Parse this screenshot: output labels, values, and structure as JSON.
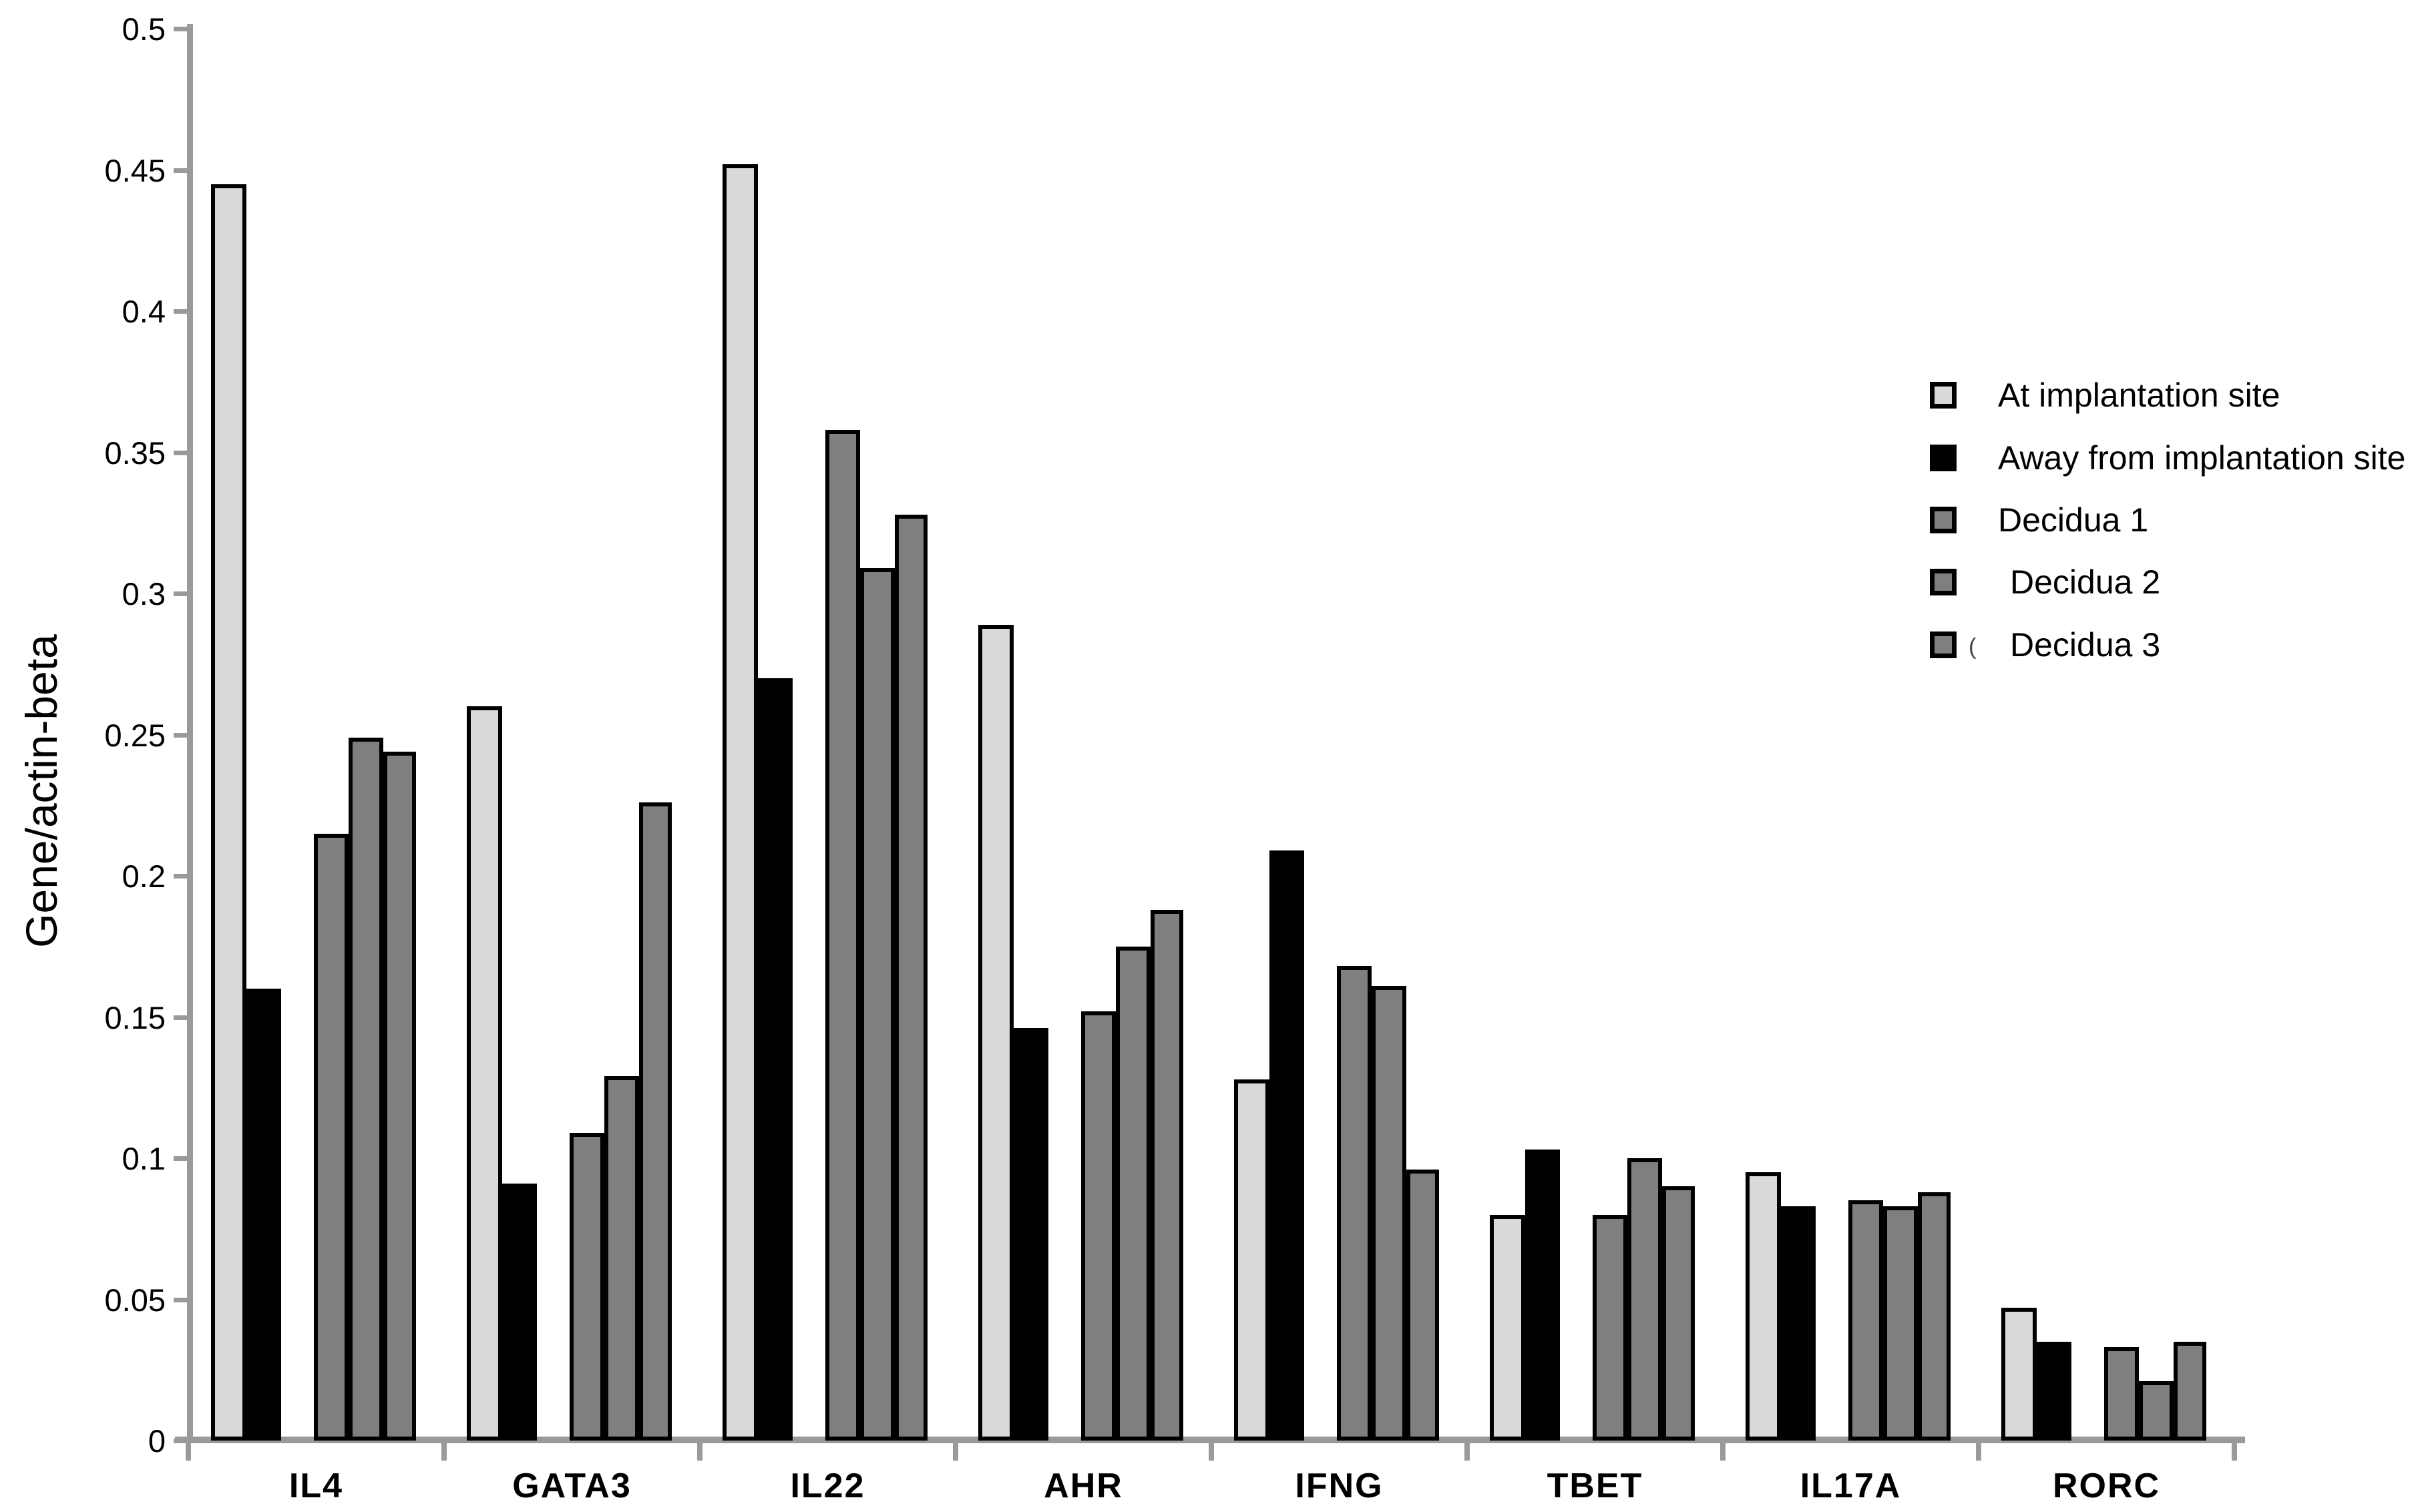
{
  "y_axis": {
    "title": "Gene/actin-beta",
    "tick_values": [
      0,
      0.05,
      0.1,
      0.15,
      0.2,
      0.25,
      0.3,
      0.35,
      0.4,
      0.45,
      0.5
    ],
    "tick_labels": [
      "0",
      "0.05",
      "0.1",
      "0.15",
      "0.2",
      "0.25",
      "0.3",
      "0.35",
      "0.4",
      "0.45",
      "0.5"
    ],
    "max": 0.5
  },
  "legend": {
    "items": [
      {
        "label": "At implantation site",
        "color": "#d9d9d9"
      },
      {
        "label": "Away from implantation site",
        "color": "#000000"
      },
      {
        "label": "Decidua 1",
        "color": "#7f7f7f"
      },
      {
        "label": "Decidua 2",
        "color": "#7f7f7f"
      },
      {
        "label": "Decidua 3",
        "color": "#7f7f7f"
      }
    ],
    "stray_mark": "("
  },
  "chart_data": {
    "type": "bar",
    "title": "",
    "xlabel": "",
    "ylabel": "Gene/actin-beta",
    "ylim": [
      0,
      0.5
    ],
    "grid": false,
    "legend_position": "upper-right",
    "categories": [
      "IL4",
      "GATA3",
      "IL22",
      "AHR",
      "IFNG",
      "TBET",
      "IL17A",
      "RORC"
    ],
    "series": [
      {
        "name": "At implantation site",
        "color": "#d9d9d9",
        "values": [
          0.445,
          0.26,
          0.452,
          0.289,
          0.128,
          0.08,
          0.095,
          0.047
        ]
      },
      {
        "name": "Away from implantation site",
        "color": "#000000",
        "values": [
          0.16,
          0.091,
          0.27,
          0.146,
          0.209,
          0.103,
          0.083,
          0.035
        ]
      },
      {
        "name": "Decidua 1",
        "color": "#7f7f7f",
        "values": [
          0.215,
          0.109,
          0.358,
          0.152,
          0.168,
          0.08,
          0.085,
          0.033
        ]
      },
      {
        "name": "Decidua 2",
        "color": "#7f7f7f",
        "values": [
          0.249,
          0.129,
          0.309,
          0.175,
          0.161,
          0.1,
          0.083,
          0.021
        ]
      },
      {
        "name": "Decidua 3",
        "color": "#7f7f7f",
        "values": [
          0.244,
          0.226,
          0.328,
          0.188,
          0.096,
          0.09,
          0.088,
          0.035
        ]
      }
    ]
  },
  "colors": {
    "axis": "#9a9a9a",
    "background": "#ffffff",
    "bar_outline": "#000000",
    "text": "#000000"
  }
}
